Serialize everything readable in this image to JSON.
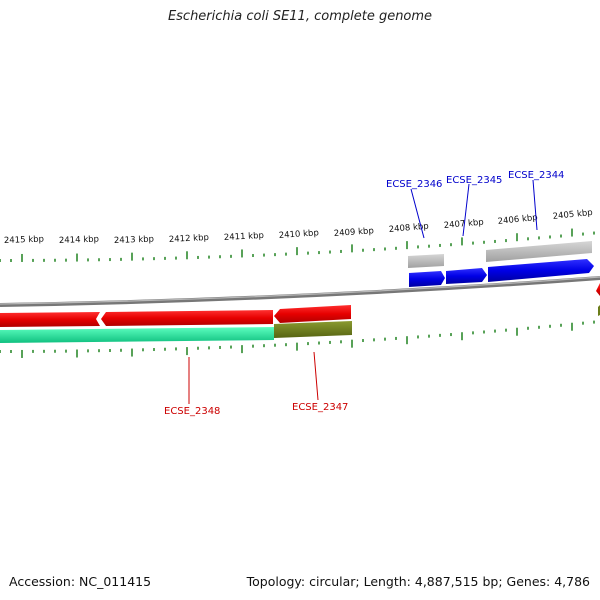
{
  "title": "Escherichia coli SE11, complete genome",
  "footer": {
    "accession": "Accession: NC_011415",
    "summary": "Topology: circular; Length: 4,887,515 bp; Genes: 4,786"
  },
  "scale": {
    "unit": "kbp",
    "tick_labels": [
      "2415 kbp",
      "2414 kbp",
      "2413 kbp",
      "2412 kbp",
      "2411 kbp",
      "2410 kbp",
      "2409 kbp",
      "2408 kbp",
      "2407 kbp",
      "2406 kbp",
      "2405 kbp"
    ]
  },
  "genes": [
    {
      "name": "ECSE_2346",
      "strand": "+",
      "color": "#0000cc"
    },
    {
      "name": "ECSE_2345",
      "strand": "+",
      "color": "#0000cc"
    },
    {
      "name": "ECSE_2344",
      "strand": "+",
      "color": "#0000cc"
    },
    {
      "name": "ECSE_2348",
      "strand": "-",
      "color": "#cc0000"
    },
    {
      "name": "ECSE_2347",
      "strand": "-",
      "color": "#cc0000"
    }
  ],
  "colors": {
    "forward_cds": "#0000e6",
    "reverse_cds": "#e60000",
    "forward_gene_box": "#b0b0b0",
    "backbone": "#888888",
    "reverse_feature_teal": "#1de9a0",
    "reverse_feature_olive": "#6b7d1a",
    "tick_green": "#2e8b2e",
    "forward_label": "#0000cc",
    "reverse_label": "#cc0000"
  }
}
